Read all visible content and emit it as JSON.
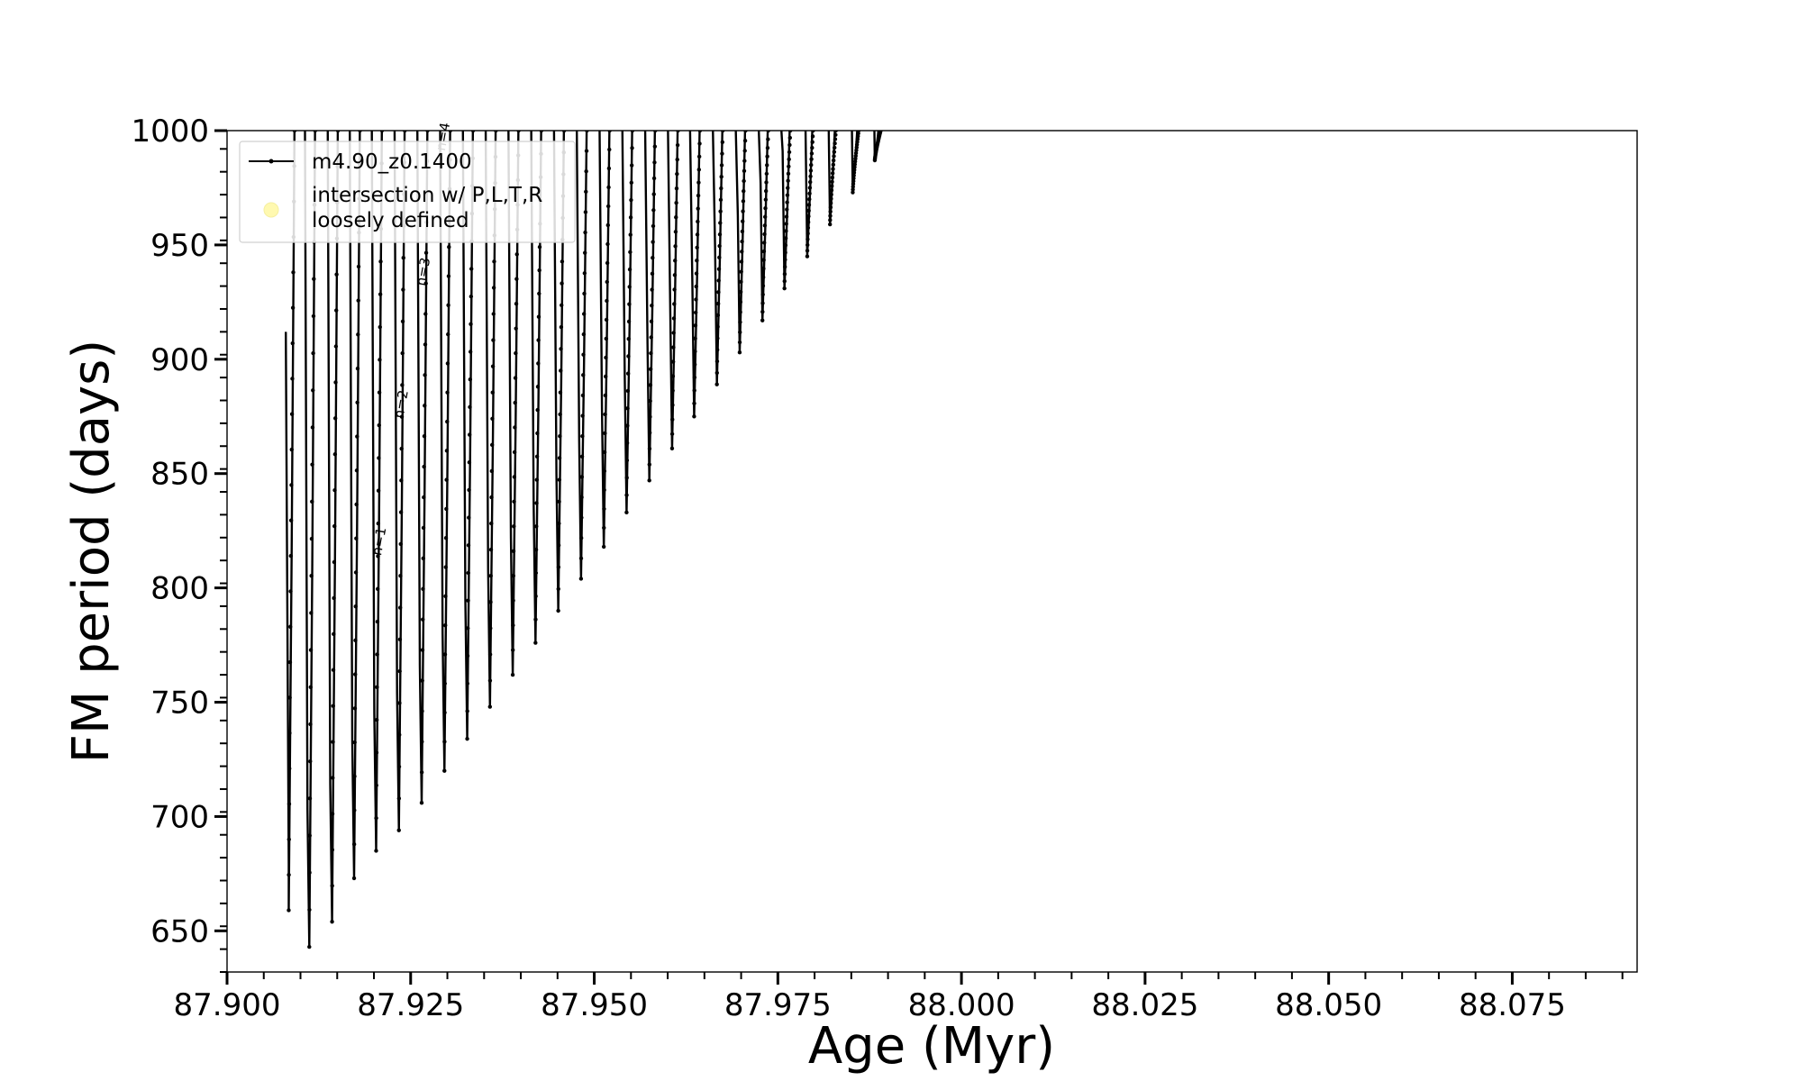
{
  "chart_data": {
    "type": "line",
    "title": "",
    "xlabel": "Age (Myr)",
    "ylabel": "FM period (days)",
    "xlim": [
      87.9,
      88.092
    ],
    "ylim": [
      632,
      1000
    ],
    "xticks": [
      87.9,
      87.925,
      87.95,
      87.975,
      88.0,
      88.025,
      88.05,
      88.075
    ],
    "xtick_labels": [
      "87.900",
      "87.925",
      "87.950",
      "87.975",
      "88.000",
      "88.025",
      "88.050",
      "88.075"
    ],
    "yticks": [
      650,
      700,
      750,
      800,
      850,
      900,
      950,
      1000
    ],
    "ytick_labels": [
      "650",
      "700",
      "750",
      "800",
      "850",
      "900",
      "950",
      "1000"
    ],
    "grid": false,
    "legend": {
      "placement": "upper-left",
      "entries": [
        {
          "label": "m4.90_z0.1400",
          "marker": "line-dot",
          "color": "#000000"
        },
        {
          "label": "intersection w/ P,L,T,R\nloosely defined",
          "marker": "circle",
          "color": "#fff9b0"
        }
      ]
    },
    "series": [
      {
        "name": "m4.90_z0.1400",
        "color": "#000000",
        "pulse_minima": [
          [
            87.9084,
            659
          ],
          [
            87.9112,
            643
          ],
          [
            87.9143,
            654
          ],
          [
            87.9173,
            673
          ],
          [
            87.9203,
            685
          ],
          [
            87.9234,
            694
          ],
          [
            87.9265,
            706
          ],
          [
            87.9296,
            720
          ],
          [
            87.9327,
            734
          ],
          [
            87.9358,
            748
          ],
          [
            87.9389,
            762
          ],
          [
            87.942,
            776
          ],
          [
            87.9451,
            790
          ],
          [
            87.9482,
            804
          ],
          [
            87.9513,
            818
          ],
          [
            87.9544,
            833
          ],
          [
            87.9575,
            847
          ],
          [
            87.9606,
            861
          ],
          [
            87.9636,
            875
          ],
          [
            87.9667,
            889
          ],
          [
            87.9698,
            903
          ],
          [
            87.9729,
            917
          ],
          [
            87.9759,
            931
          ],
          [
            87.979,
            945
          ],
          [
            87.9821,
            959
          ],
          [
            87.9852,
            973
          ],
          [
            87.9882,
            987
          ]
        ],
        "first_segment_start": [
          87.908,
          912
        ]
      }
    ],
    "annotations": [
      {
        "text": "n=1",
        "x": 87.9213,
        "y": 820
      },
      {
        "text": "n=2",
        "x": 87.9243,
        "y": 880
      },
      {
        "text": "n=3",
        "x": 87.9273,
        "y": 938
      },
      {
        "text": "n=4",
        "x": 87.93,
        "y": 997
      }
    ]
  }
}
